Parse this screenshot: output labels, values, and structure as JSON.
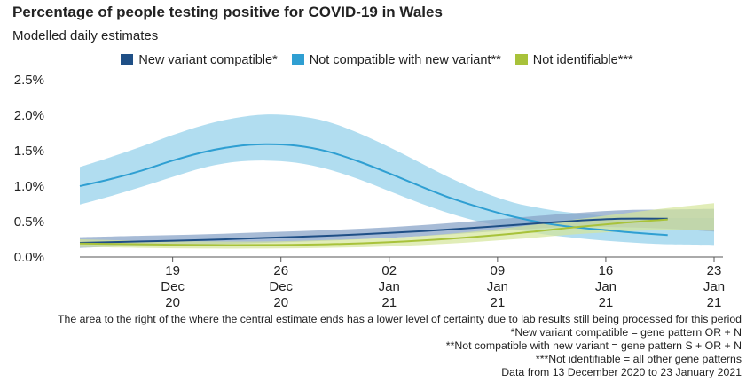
{
  "header": {
    "title": "Percentage of people testing positive for COVID-19 in Wales",
    "subtitle": "Modelled daily estimates"
  },
  "colors": {
    "new_variant_line": "#1f4f86",
    "new_variant_band": "#8aa4c8",
    "not_compatible_line": "#2f9fd2",
    "not_compatible_band": "#9dd4ec",
    "not_identifiable_line": "#a8c23a",
    "not_identifiable_band": "#d4e59a"
  },
  "chart_data": {
    "type": "line",
    "title": "Percentage of people testing positive for COVID-19 in Wales",
    "subtitle": "Modelled daily estimates",
    "x_tick_labels": [
      [
        "19",
        "Dec",
        "20"
      ],
      [
        "26",
        "Dec",
        "20"
      ],
      [
        "02",
        "Jan",
        "21"
      ],
      [
        "09",
        "Jan",
        "21"
      ],
      [
        "16",
        "Jan",
        "21"
      ],
      [
        "23",
        "Jan",
        "21"
      ]
    ],
    "x_ticks": [
      "2020-12-19",
      "2020-12-26",
      "2021-01-02",
      "2021-01-09",
      "2021-01-16",
      "2021-01-23"
    ],
    "xlim": [
      "2020-12-13",
      "2021-01-23"
    ],
    "y_tick_labels": [
      "0.0%",
      "0.5%",
      "1.0%",
      "1.5%",
      "2.0%",
      "2.5%"
    ],
    "ylim": [
      0,
      2.5
    ],
    "legend": [
      "New variant compatible*",
      "Not compatible with new variant**",
      "Not identifiable***"
    ],
    "legend_position": "top-center",
    "series": [
      {
        "name": "New variant compatible*",
        "x": [
          "2020-12-13",
          "2020-12-17",
          "2020-12-21",
          "2020-12-25",
          "2020-12-29",
          "2021-01-02",
          "2021-01-06",
          "2021-01-10",
          "2021-01-14",
          "2021-01-17",
          "2021-01-20",
          "2021-01-23"
        ],
        "values": [
          0.2,
          0.22,
          0.24,
          0.27,
          0.3,
          0.34,
          0.39,
          0.45,
          0.51,
          0.54,
          0.54,
          null
        ],
        "lower": [
          0.13,
          0.16,
          0.18,
          0.2,
          0.23,
          0.27,
          0.32,
          0.38,
          0.43,
          0.42,
          0.4,
          0.36
        ],
        "upper": [
          0.28,
          0.3,
          0.32,
          0.35,
          0.38,
          0.42,
          0.48,
          0.55,
          0.62,
          0.66,
          0.67,
          0.68
        ]
      },
      {
        "name": "Not compatible with new variant**",
        "x": [
          "2020-12-13",
          "2020-12-15",
          "2020-12-17",
          "2020-12-19",
          "2020-12-21",
          "2020-12-23",
          "2020-12-25",
          "2020-12-27",
          "2020-12-29",
          "2020-12-31",
          "2021-01-02",
          "2021-01-04",
          "2021-01-06",
          "2021-01-08",
          "2021-01-10",
          "2021-01-12",
          "2021-01-14",
          "2021-01-16",
          "2021-01-18",
          "2021-01-20",
          "2021-01-23"
        ],
        "values": [
          1.0,
          1.1,
          1.22,
          1.36,
          1.48,
          1.56,
          1.59,
          1.57,
          1.49,
          1.35,
          1.18,
          1.0,
          0.83,
          0.69,
          0.57,
          0.48,
          0.42,
          0.38,
          0.34,
          0.31,
          null
        ],
        "lower": [
          0.74,
          0.86,
          0.99,
          1.13,
          1.26,
          1.34,
          1.36,
          1.33,
          1.24,
          1.1,
          0.93,
          0.76,
          0.61,
          0.49,
          0.4,
          0.32,
          0.27,
          0.23,
          0.2,
          0.18,
          0.17
        ],
        "upper": [
          1.27,
          1.41,
          1.56,
          1.72,
          1.86,
          1.96,
          2.01,
          1.99,
          1.91,
          1.75,
          1.55,
          1.33,
          1.11,
          0.92,
          0.77,
          0.68,
          0.62,
          0.58,
          0.56,
          0.55,
          0.55
        ]
      },
      {
        "name": "Not identifiable***",
        "x": [
          "2020-12-13",
          "2020-12-17",
          "2020-12-21",
          "2020-12-25",
          "2020-12-29",
          "2021-01-02",
          "2021-01-06",
          "2021-01-10",
          "2021-01-14",
          "2021-01-17",
          "2021-01-20",
          "2021-01-23"
        ],
        "values": [
          0.19,
          0.18,
          0.17,
          0.17,
          0.18,
          0.21,
          0.26,
          0.33,
          0.42,
          0.48,
          0.53,
          null
        ],
        "lower": [
          0.14,
          0.13,
          0.12,
          0.12,
          0.13,
          0.15,
          0.19,
          0.25,
          0.32,
          0.36,
          0.38,
          0.37
        ],
        "upper": [
          0.25,
          0.23,
          0.22,
          0.22,
          0.24,
          0.27,
          0.33,
          0.42,
          0.53,
          0.61,
          0.69,
          0.76
        ]
      }
    ],
    "grid": false
  },
  "notes": [
    "The area to the right of the where the central estimate ends has a lower level of certainty due to lab results still being processed for this period",
    "*New variant compatible = gene pattern OR + N",
    "**Not compatible with new variant = gene pattern S + OR + N",
    "***Not identifiable = all other gene patterns",
    "Data from 13 December 2020 to 23 January 2021"
  ]
}
